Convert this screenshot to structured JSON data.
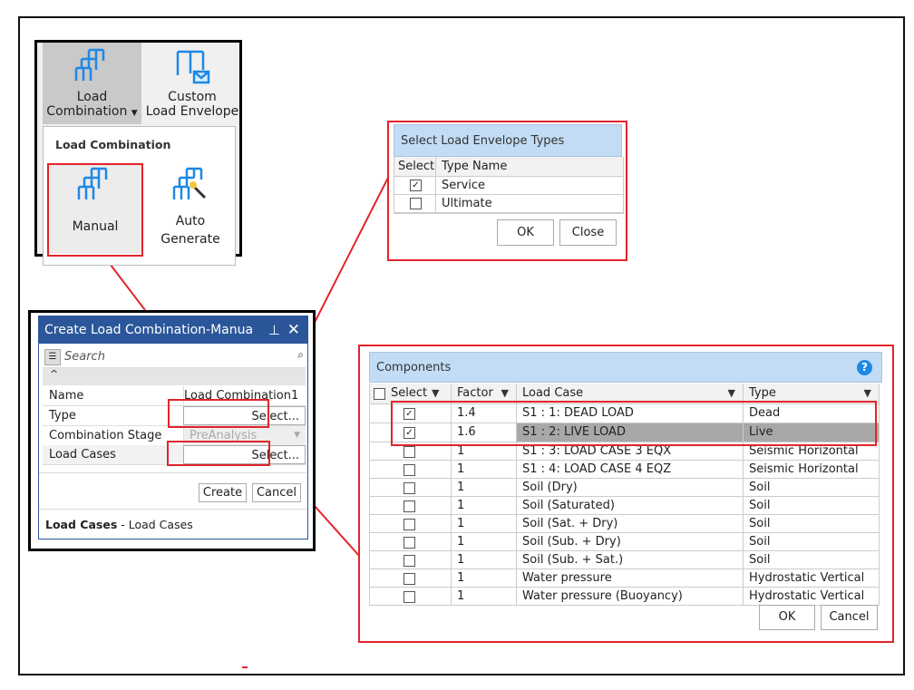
{
  "ribbon": {
    "load_combination": "Load",
    "load_combination_line2": "Combination",
    "custom_line1": "Custom",
    "custom_line2": "Load Envelope",
    "dropdown_header": "Load Combination",
    "manual": "Manual",
    "auto_line1": "Auto",
    "auto_line2": "Generate"
  },
  "dialog": {
    "title": "Create Load Combination-Manua",
    "search_placeholder": "Search",
    "rows": [
      {
        "label": "Name",
        "value": "Load Combination1"
      },
      {
        "label": "Type",
        "value": "Select..."
      },
      {
        "label": "Combination Stage",
        "value": "PreAnalysis"
      },
      {
        "label": "Load Cases",
        "value": "Select..."
      }
    ],
    "create": "Create",
    "cancel": "Cancel",
    "footer_bold": "Load Cases",
    "footer_text": " - Load Cases"
  },
  "envelope": {
    "title": "Select Load Envelope Types",
    "col_select": "Select",
    "col_type": "Type Name",
    "rows": [
      {
        "checked": true,
        "name": "Service"
      },
      {
        "checked": false,
        "name": "Ultimate"
      }
    ],
    "ok": "OK",
    "close": "Close"
  },
  "components": {
    "title": "Components",
    "headers": [
      "Select",
      "Factor",
      "Load Case",
      "Type"
    ],
    "rows": [
      {
        "checked": true,
        "factor": "1.4",
        "case": "S1 : 1: DEAD LOAD",
        "type": "Dead"
      },
      {
        "checked": true,
        "factor": "1.6",
        "case": "S1 : 2: LIVE LOAD",
        "type": "Live",
        "selected": true
      },
      {
        "checked": false,
        "factor": "1",
        "case": "S1 : 3: LOAD CASE 3 EQX",
        "type": "Seismic Horizontal"
      },
      {
        "checked": false,
        "factor": "1",
        "case": "S1 : 4: LOAD CASE 4 EQZ",
        "type": "Seismic Horizontal"
      },
      {
        "checked": false,
        "factor": "1",
        "case": "Soil (Dry)",
        "type": "Soil"
      },
      {
        "checked": false,
        "factor": "1",
        "case": "Soil (Saturated)",
        "type": "Soil"
      },
      {
        "checked": false,
        "factor": "1",
        "case": "Soil (Sat. + Dry)",
        "type": "Soil"
      },
      {
        "checked": false,
        "factor": "1",
        "case": "Soil (Sub. + Dry)",
        "type": "Soil"
      },
      {
        "checked": false,
        "factor": "1",
        "case": "Soil (Sub. + Sat.)",
        "type": "Soil"
      },
      {
        "checked": false,
        "factor": "1",
        "case": "Water pressure",
        "type": "Hydrostatic Vertical"
      },
      {
        "checked": false,
        "factor": "1",
        "case": "Water pressure (Buoyancy)",
        "type": "Hydrostatic Vertical"
      }
    ],
    "ok": "OK",
    "cancel": "Cancel"
  },
  "colors": {
    "title_bar": "#2b579a",
    "header_blue": "#c3dcf5",
    "annotation_red": "#e3242b",
    "icon_blue": "#1e88e5"
  }
}
